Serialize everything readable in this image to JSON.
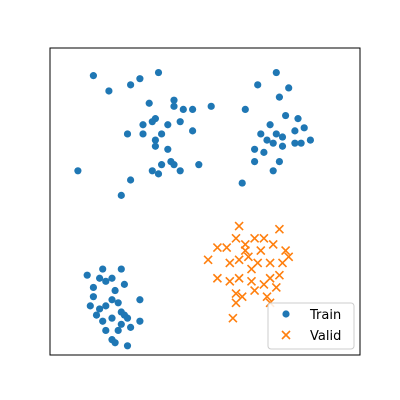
{
  "chart_data": {
    "type": "scatter",
    "xlim": [
      0,
      10
    ],
    "ylim": [
      0,
      10
    ],
    "grid": false,
    "axes_ticks": false,
    "legend_placement": "bottom-right",
    "series": [
      {
        "name": "Train",
        "marker": "circle",
        "color": "#1f77b4",
        "points": [
          [
            1.4,
            9.1
          ],
          [
            1.9,
            8.6
          ],
          [
            2.6,
            8.8
          ],
          [
            2.9,
            9.0
          ],
          [
            3.5,
            9.2
          ],
          [
            3.2,
            8.2
          ],
          [
            3.0,
            7.5
          ],
          [
            3.4,
            7.7
          ],
          [
            3.0,
            7.2
          ],
          [
            3.3,
            7.6
          ],
          [
            3.4,
            7.0
          ],
          [
            3.4,
            6.8
          ],
          [
            3.6,
            7.2
          ],
          [
            3.8,
            6.7
          ],
          [
            4.0,
            6.2
          ],
          [
            4.6,
            7.3
          ],
          [
            4.0,
            8.1
          ],
          [
            4.3,
            8.0
          ],
          [
            4.6,
            8.0
          ],
          [
            3.6,
            6.2
          ],
          [
            4.2,
            6.0
          ],
          [
            3.9,
            6.3
          ],
          [
            3.8,
            7.5
          ],
          [
            4.2,
            7.6
          ],
          [
            0.9,
            6.0
          ],
          [
            2.6,
            5.7
          ],
          [
            2.3,
            5.2
          ],
          [
            3.5,
            5.9
          ],
          [
            3.3,
            6.0
          ],
          [
            4.8,
            6.2
          ],
          [
            5.2,
            8.1
          ],
          [
            6.3,
            8.0
          ],
          [
            4.0,
            8.3
          ],
          [
            2.5,
            7.2
          ],
          [
            7.1,
            7.5
          ],
          [
            7.4,
            8.4
          ],
          [
            7.0,
            7.0
          ],
          [
            6.6,
            6.3
          ],
          [
            6.6,
            6.7
          ],
          [
            6.9,
            6.6
          ],
          [
            6.8,
            7.2
          ],
          [
            7.2,
            6.9
          ],
          [
            7.3,
            7.2
          ],
          [
            7.5,
            7.1
          ],
          [
            7.4,
            6.3
          ],
          [
            7.5,
            6.8
          ],
          [
            7.9,
            6.9
          ],
          [
            8.1,
            6.9
          ],
          [
            7.9,
            7.3
          ],
          [
            8.4,
            7.0
          ],
          [
            8.0,
            7.7
          ],
          [
            8.2,
            7.4
          ],
          [
            7.6,
            7.8
          ],
          [
            7.3,
            9.2
          ],
          [
            7.7,
            8.7
          ],
          [
            6.7,
            8.8
          ],
          [
            6.2,
            5.6
          ],
          [
            7.2,
            6.0
          ],
          [
            1.2,
            2.6
          ],
          [
            1.6,
            2.5
          ],
          [
            1.4,
            2.2
          ],
          [
            1.8,
            2.4
          ],
          [
            1.3,
            1.6
          ],
          [
            1.4,
            1.9
          ],
          [
            1.5,
            1.3
          ],
          [
            1.7,
            1.1
          ],
          [
            2.0,
            1.2
          ],
          [
            1.6,
            1.5
          ],
          [
            1.8,
            1.6
          ],
          [
            2.0,
            1.8
          ],
          [
            2.0,
            2.5
          ],
          [
            2.1,
            2.1
          ],
          [
            2.2,
            1.7
          ],
          [
            2.3,
            1.4
          ],
          [
            2.4,
            1.3
          ],
          [
            2.5,
            1.2
          ],
          [
            2.3,
            1.0
          ],
          [
            2.6,
            0.9
          ],
          [
            2.2,
            0.8
          ],
          [
            1.8,
            0.8
          ],
          [
            2.0,
            0.5
          ],
          [
            2.1,
            0.4
          ],
          [
            2.5,
            0.3
          ],
          [
            2.9,
            1.1
          ],
          [
            2.9,
            1.8
          ],
          [
            2.3,
            2.8
          ],
          [
            2.4,
            2.3
          ],
          [
            1.7,
            2.8
          ]
        ]
      },
      {
        "name": "Valid",
        "marker": "x",
        "color": "#ff7f0e",
        "points": [
          [
            6.1,
            4.2
          ],
          [
            7.4,
            4.1
          ],
          [
            5.1,
            3.1
          ],
          [
            5.4,
            3.5
          ],
          [
            5.7,
            3.5
          ],
          [
            6.3,
            3.6
          ],
          [
            6.6,
            3.8
          ],
          [
            6.9,
            3.8
          ],
          [
            7.2,
            3.6
          ],
          [
            7.6,
            3.4
          ],
          [
            5.8,
            3.0
          ],
          [
            6.1,
            3.1
          ],
          [
            6.4,
            3.2
          ],
          [
            6.7,
            3.0
          ],
          [
            7.1,
            3.0
          ],
          [
            7.5,
            3.0
          ],
          [
            7.7,
            3.2
          ],
          [
            5.4,
            2.5
          ],
          [
            5.8,
            2.4
          ],
          [
            6.1,
            2.5
          ],
          [
            6.5,
            2.4
          ],
          [
            6.9,
            2.3
          ],
          [
            7.1,
            2.5
          ],
          [
            7.3,
            2.2
          ],
          [
            6.0,
            2.0
          ],
          [
            6.2,
            1.9
          ],
          [
            6.6,
            2.1
          ],
          [
            6.0,
            1.7
          ],
          [
            7.0,
            1.9
          ],
          [
            7.1,
            1.7
          ],
          [
            6.3,
            3.4
          ],
          [
            6.8,
            3.4
          ],
          [
            6.5,
            2.8
          ],
          [
            7.4,
            2.6
          ],
          [
            5.9,
            1.2
          ],
          [
            6.0,
            3.8
          ]
        ]
      }
    ]
  }
}
